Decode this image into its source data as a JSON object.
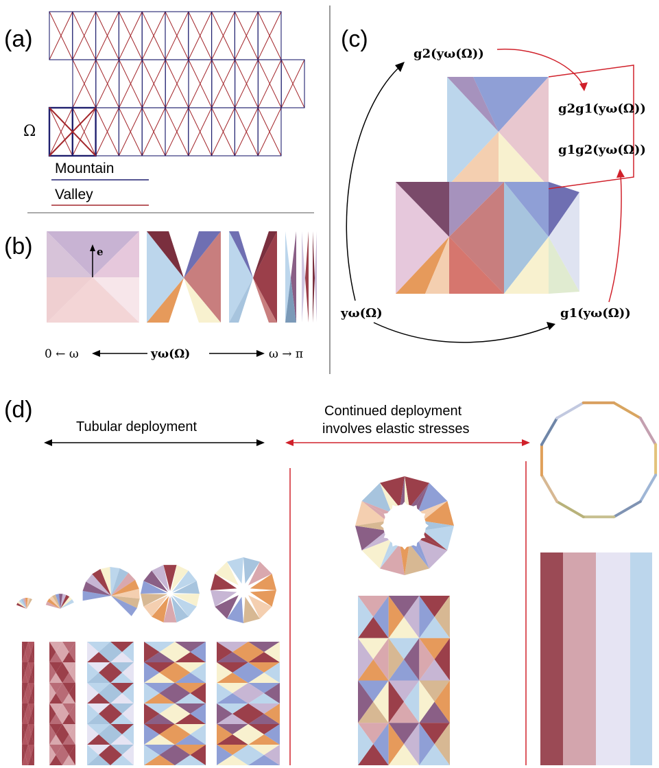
{
  "panels": {
    "a": {
      "label": "(a)",
      "omega": "Ω",
      "legend": {
        "mountain": "Mountain",
        "valley": "Valley",
        "mountain_color": "#1f1f6e",
        "valley_color": "#a3262b"
      }
    },
    "b": {
      "label": "(b)",
      "vector_label": "e",
      "axis": {
        "left": "0 ← ω",
        "center": "yω(Ω)",
        "right": "ω → π"
      }
    },
    "c": {
      "label": "(c)",
      "y": "yω(Ω)",
      "g1": "g1(yω(Ω))",
      "g2": "g2(yω(Ω))",
      "g2g1": "g2g1(yω(Ω))",
      "g1g2": "g1g2(yω(Ω))",
      "highlight_color": "#d0202a"
    },
    "d": {
      "label": "(d)",
      "tubular": "Tubular deployment",
      "continued_line1": "Continued deployment",
      "continued_line2": "involves elastic stresses",
      "continued_color": "#d0202a"
    }
  },
  "palette": {
    "dark_red": "#9b3f4a",
    "rose": "#d9a8ae",
    "lavender": "#c7b6d4",
    "purple": "#8a5f86",
    "blue": "#8f9fd6",
    "light_blue": "#bcd6ec",
    "sky": "#a7c4de",
    "cream": "#f8f1cf",
    "orange": "#e69a5b",
    "peach": "#f4cfb0",
    "tan": "#d7b893"
  }
}
